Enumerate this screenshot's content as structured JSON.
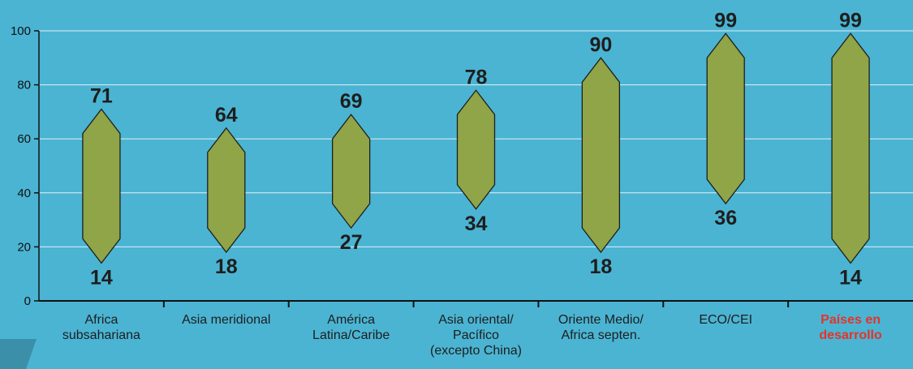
{
  "colors": {
    "background": "#4bb4d3",
    "bar_fill": "#8fa547",
    "bar_stroke": "#1f1f1f",
    "gridline": "#dff1f8",
    "highlight_label": "#e5332a"
  },
  "chart_data": {
    "type": "range-bar",
    "title": "",
    "xlabel": "",
    "ylabel": "",
    "ylim": [
      0,
      100
    ],
    "yticks": [
      0,
      20,
      40,
      60,
      80,
      100
    ],
    "grid": true,
    "categories": [
      {
        "label": [
          "Africa",
          "subsahariana"
        ],
        "low": 14,
        "high": 71,
        "highlight": false
      },
      {
        "label": [
          "Asia meridional"
        ],
        "low": 18,
        "high": 64,
        "highlight": false
      },
      {
        "label": [
          "América",
          "Latina/Caribe"
        ],
        "low": 27,
        "high": 69,
        "highlight": false
      },
      {
        "label": [
          "Asia oriental/",
          "Pacífico",
          "(excepto China)"
        ],
        "low": 34,
        "high": 78,
        "highlight": false
      },
      {
        "label": [
          "Oriente Medio/",
          "Africa septen."
        ],
        "low": 18,
        "high": 90,
        "highlight": false
      },
      {
        "label": [
          "ECO/CEI"
        ],
        "low": 36,
        "high": 99,
        "highlight": false
      },
      {
        "label": [
          "Países en",
          "desarrollo"
        ],
        "low": 14,
        "high": 99,
        "highlight": true
      }
    ]
  }
}
